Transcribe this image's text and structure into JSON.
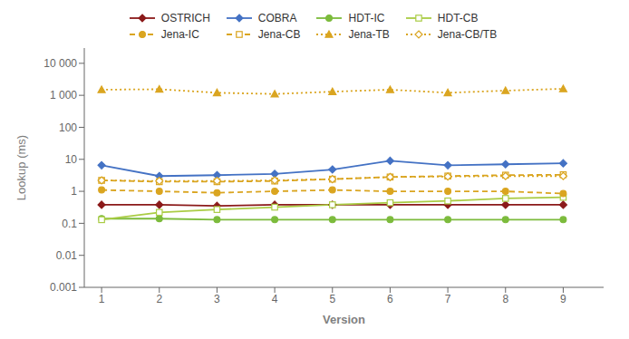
{
  "chart_data": {
    "type": "line",
    "xlabel": "Version",
    "ylabel": "Lookup (ms)",
    "x": [
      1,
      2,
      3,
      4,
      5,
      6,
      7,
      8,
      9
    ],
    "xlim": [
      0.7,
      9.7
    ],
    "xticks": [
      1,
      2,
      3,
      4,
      5,
      6,
      7,
      8,
      9
    ],
    "ylim": [
      0.001,
      30000
    ],
    "yticks": [
      0.001,
      0.01,
      0.1,
      1,
      10,
      100,
      {
        "value": 1000,
        "label": "1 000"
      },
      {
        "value": 10000,
        "label": "10 000"
      }
    ],
    "log": "y",
    "grid": false,
    "legend": "top",
    "series": [
      {
        "name": "OSTRICH",
        "color": "#8B1A1A",
        "marker": "diamond",
        "line_style": "solid",
        "values": [
          0.38,
          0.38,
          0.35,
          0.38,
          0.38,
          0.38,
          0.38,
          0.38,
          0.38
        ]
      },
      {
        "name": "COBRA",
        "color": "#4472C4",
        "marker": "diamond",
        "line_style": "solid",
        "values": [
          6.5,
          3.0,
          3.2,
          3.5,
          4.8,
          9.0,
          6.5,
          7.0,
          7.5
        ]
      },
      {
        "name": "HDT-IC",
        "color": "#7CBB3C",
        "marker": "circle",
        "line_style": "solid",
        "values": [
          0.14,
          0.14,
          0.13,
          0.13,
          0.13,
          0.13,
          0.13,
          0.13,
          0.13
        ]
      },
      {
        "name": "HDT-CB",
        "color": "#AACC44",
        "marker": "open_square",
        "line_style": "solid",
        "values": [
          0.13,
          0.22,
          0.27,
          0.32,
          0.38,
          0.44,
          0.5,
          0.6,
          0.65
        ]
      },
      {
        "name": "Jena-IC",
        "color": "#DAA520",
        "marker": "circle",
        "line_style": "dashed",
        "values": [
          1.1,
          1.0,
          0.9,
          1.0,
          1.1,
          1.0,
          1.0,
          1.0,
          0.85
        ]
      },
      {
        "name": "Jena-CB",
        "color": "#DAA520",
        "marker": "open_square",
        "line_style": "dashed",
        "values": [
          2.2,
          2.0,
          2.0,
          2.1,
          2.4,
          2.8,
          3.0,
          3.2,
          3.3
        ]
      },
      {
        "name": "Jena-TB",
        "color": "#DAA520",
        "marker": "triangle",
        "line_style": "dotted",
        "values": [
          1500,
          1550,
          1200,
          1100,
          1300,
          1500,
          1200,
          1400,
          1600
        ]
      },
      {
        "name": "Jena-CB/TB",
        "color": "#DAA520",
        "marker": "open_diamond",
        "line_style": "dotted",
        "values": [
          2.2,
          2.1,
          2.1,
          2.2,
          2.4,
          2.8,
          2.9,
          3.0,
          3.0
        ]
      }
    ]
  }
}
